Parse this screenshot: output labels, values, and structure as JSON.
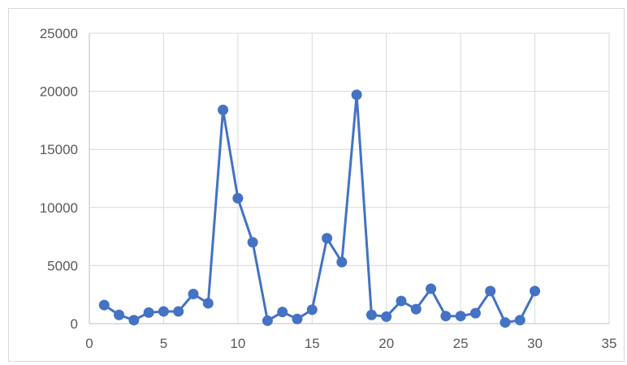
{
  "chart_data": {
    "type": "scatter",
    "mode": "lines+markers",
    "title": "",
    "xlabel": "",
    "ylabel": "",
    "xlim": [
      0,
      35
    ],
    "ylim": [
      0,
      25000
    ],
    "x_ticks": [
      0,
      5,
      10,
      15,
      20,
      25,
      30,
      35
    ],
    "y_ticks": [
      0,
      5000,
      10000,
      15000,
      20000,
      25000
    ],
    "grid": true,
    "legend": "none",
    "series": [
      {
        "color": "#4472c4",
        "x": [
          1,
          2,
          3,
          4,
          5,
          6,
          7,
          8,
          9,
          10,
          11,
          12,
          13,
          14,
          15,
          16,
          17,
          18,
          19,
          20,
          21,
          22,
          23,
          24,
          25,
          26,
          27,
          28,
          29,
          30
        ],
        "y": [
          1600,
          750,
          300,
          950,
          1050,
          1050,
          2550,
          1750,
          18400,
          10800,
          7000,
          250,
          1000,
          400,
          1200,
          7350,
          5300,
          19700,
          750,
          600,
          1950,
          1250,
          3000,
          650,
          650,
          900,
          2800,
          100,
          300,
          2800
        ]
      }
    ]
  }
}
